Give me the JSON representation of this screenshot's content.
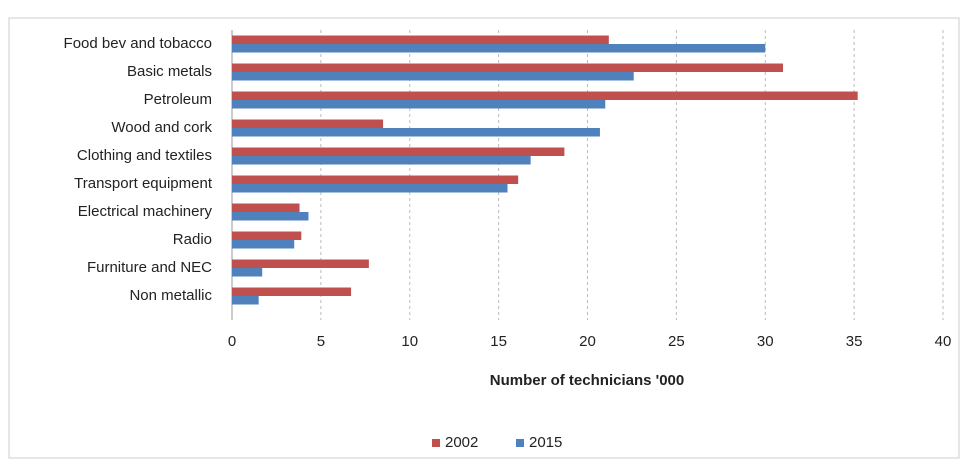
{
  "chart_data": {
    "type": "hbar",
    "categories": [
      "Food bev and tobacco",
      "Basic metals",
      "Petroleum",
      "Wood and cork",
      "Clothing and textiles",
      "Transport equipment",
      "Electrical machinery",
      "Radio",
      "Furniture and NEC",
      "Non metallic"
    ],
    "series": [
      {
        "name": "2002",
        "color": "#c0504d",
        "values": [
          21.2,
          31,
          35.2,
          8.5,
          18.7,
          16.1,
          3.8,
          3.9,
          7.7,
          6.7
        ]
      },
      {
        "name": "2015",
        "color": "#4f81bd",
        "values": [
          30,
          22.6,
          21,
          20.7,
          16.8,
          15.5,
          4.3,
          3.5,
          1.7,
          1.5
        ]
      }
    ],
    "xlabel": "Number of technicians '000",
    "xlim": [
      0,
      40
    ],
    "xticks": [
      0,
      5,
      10,
      15,
      20,
      25,
      30,
      35,
      40
    ],
    "grid": true,
    "legend": "bottom"
  }
}
